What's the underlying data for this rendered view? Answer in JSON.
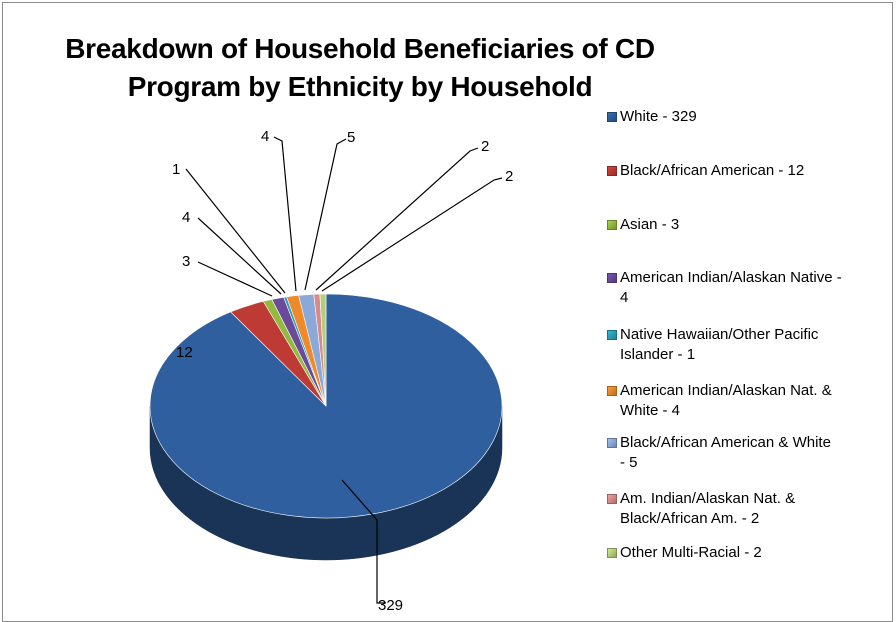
{
  "chart_data": {
    "type": "pie",
    "title": "Breakdown of Household Beneficiaries of CD Program by Ethnicity by Household",
    "title_lines": [
      "Breakdown of Household Beneficiaries of CD",
      "Program by Ethnicity by Household"
    ],
    "style": "3d",
    "legend_position": "right",
    "slices": [
      {
        "label": "White",
        "value": 329,
        "legend": "White - 329",
        "legend_lines": [
          "White - 329"
        ],
        "color": "#2f5f9e"
      },
      {
        "label": "Black/African American",
        "value": 12,
        "legend": "Black/African American - 12",
        "legend_lines": [
          "Black/African American - 12"
        ],
        "color": "#be3a34"
      },
      {
        "label": "Asian",
        "value": 3,
        "legend": "Asian - 3",
        "legend_lines": [
          "Asian - 3"
        ],
        "color": "#93b93e"
      },
      {
        "label": "American Indian/Alaskan Native",
        "value": 4,
        "legend": "American Indian/Alaskan Native - 4",
        "legend_lines": [
          "American Indian/Alaskan Native -",
          "4"
        ],
        "color": "#6b4a9a"
      },
      {
        "label": "Native Hawaiian/Other Pacific Islander",
        "value": 1,
        "legend": "Native Hawaiian/Other Pacific Islander - 1",
        "legend_lines": [
          "Native Hawaiian/Other Pacific",
          "Islander - 1"
        ],
        "color": "#2aa0b8"
      },
      {
        "label": "American Indian/Alaskan Nat. & White",
        "value": 4,
        "legend": "American Indian/Alaskan Nat. & White - 4",
        "legend_lines": [
          "American Indian/Alaskan Nat. &",
          "White - 4"
        ],
        "color": "#ef8a2a"
      },
      {
        "label": "Black/African American & White",
        "value": 5,
        "legend": "Black/African American & White - 5",
        "legend_lines": [
          "Black/African American & White",
          "- 5"
        ],
        "color": "#8aa8d8"
      },
      {
        "label": "Am. Indian/Alaskan Nat. & Black/African Am.",
        "value": 2,
        "legend": "Am. Indian/Alaskan Nat. & Black/African Am. - 2",
        "legend_lines": [
          "Am. Indian/Alaskan Nat. &",
          "Black/African Am. - 2"
        ],
        "color": "#d88a8a"
      },
      {
        "label": "Other Multi-Racial",
        "value": 2,
        "legend": "Other Multi-Racial - 2",
        "legend_lines": [
          "Other Multi-Racial - 2"
        ],
        "color": "#b3cf7a"
      }
    ],
    "data_labels": [
      "329",
      "12",
      "3",
      "4",
      "1",
      "4",
      "5",
      "2",
      "2"
    ]
  }
}
